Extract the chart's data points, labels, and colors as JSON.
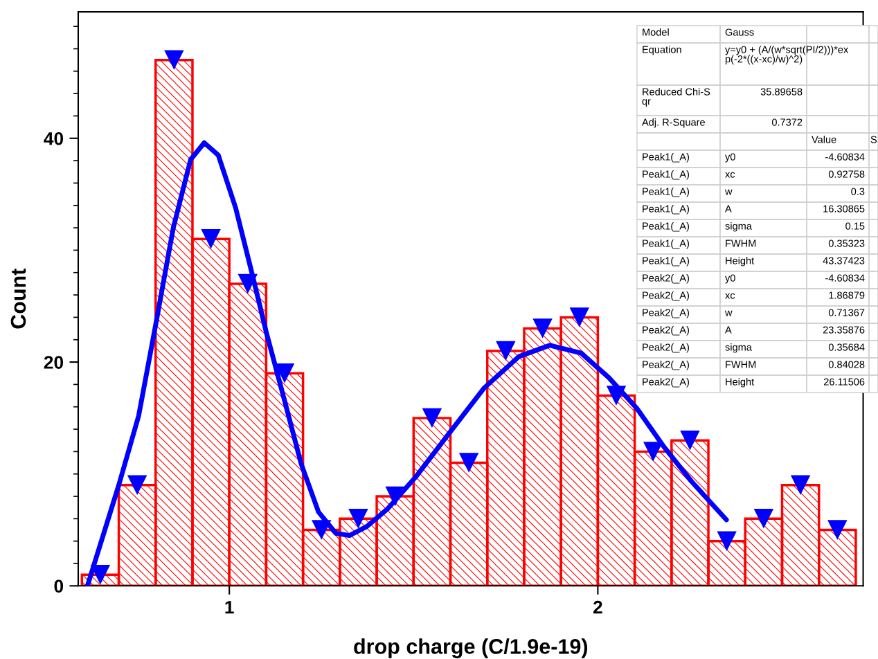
{
  "chart_data": {
    "type": "histogram",
    "xlabel": "drop charge (C/1.9e-19)",
    "ylabel": "Count",
    "xlim": [
      0.59,
      2.72
    ],
    "ylim": [
      0,
      51.3
    ],
    "xticks": [
      1,
      2
    ],
    "yticks": [
      0,
      {
        "value": 2,
        "label": null
      },
      {
        "value": 4,
        "label": null
      },
      {
        "value": 6,
        "label": null
      },
      {
        "value": 8,
        "label": null
      },
      {
        "value": 10,
        "label": null
      },
      {
        "value": 12,
        "label": null
      },
      {
        "value": 14,
        "label": null
      },
      {
        "value": 16,
        "label": null
      },
      {
        "value": 18,
        "label": null
      },
      20,
      {
        "value": 22,
        "label": null
      },
      {
        "value": 24,
        "label": null
      },
      {
        "value": 26,
        "label": null
      },
      {
        "value": 28,
        "label": null
      },
      {
        "value": 30,
        "label": null
      },
      {
        "value": 32,
        "label": null
      },
      {
        "value": 34,
        "label": null
      },
      {
        "value": 36,
        "label": null
      },
      {
        "value": 38,
        "label": null
      },
      40,
      {
        "value": 42,
        "label": null
      },
      {
        "value": 44,
        "label": null
      },
      {
        "value": 46,
        "label": null
      },
      {
        "value": 48,
        "label": null
      },
      {
        "value": 50,
        "label": null
      }
    ],
    "grid": false,
    "legend": false,
    "series": [
      {
        "color": "#ff0000",
        "bins": [
          0.6,
          0.7,
          0.8,
          0.9,
          1.0,
          1.1,
          1.2,
          1.3,
          1.4,
          1.5,
          1.6,
          1.7,
          1.8,
          1.9,
          2.0,
          2.1,
          2.2,
          2.3,
          2.4,
          2.5,
          2.6,
          2.7
        ],
        "values": [
          1,
          9,
          47,
          31,
          27,
          19,
          5,
          6,
          8,
          15,
          11,
          21,
          23,
          24,
          17,
          12,
          13,
          4,
          6,
          9,
          5
        ]
      },
      {
        "type": "line",
        "color": "#0000ff",
        "line_style": "solid",
        "x": [
          0.615,
          0.7,
          0.754,
          0.8,
          0.848,
          0.895,
          0.932,
          0.97,
          1.017,
          1.064,
          1.1,
          1.148,
          1.195,
          1.242,
          1.289,
          1.326,
          1.373,
          1.43,
          1.505,
          1.598,
          1.692,
          1.786,
          1.87,
          1.955,
          2.03,
          2.105,
          2.18,
          2.255,
          2.349
        ],
        "values": [
          0,
          9.0,
          15.2,
          23.3,
          32.0,
          38.1,
          39.6,
          38.5,
          33.8,
          27.6,
          22.7,
          16.8,
          10.9,
          6.6,
          4.7,
          4.5,
          5.3,
          6.9,
          9.7,
          13.7,
          17.7,
          20.5,
          21.5,
          20.8,
          18.6,
          15.9,
          12.4,
          9.3,
          5.9
        ]
      },
      {
        "type": "scatter",
        "color": "#0000ff",
        "marker": "triangle",
        "x": [
          0.65,
          0.75,
          0.85,
          0.95,
          1.05,
          1.15,
          1.25,
          1.35,
          1.45,
          1.55,
          1.65,
          1.75,
          1.85,
          1.95,
          2.05,
          2.15,
          2.25,
          2.35,
          2.45,
          2.55,
          2.65
        ],
        "values": [
          1,
          9,
          47,
          31,
          27,
          19,
          5,
          6,
          8,
          15,
          11,
          21,
          23,
          24,
          17,
          12,
          13,
          4,
          6,
          9,
          5
        ]
      }
    ],
    "annotations": [
      "Model\tGauss\t\t",
      "Equation\ty=y0 + (A/(w*sqrt(PI/2)))*ex\np(-2*((x-xc)/w)^2)\t\t",
      "Reduced Chi-S\nqr\t35.89658\t\t",
      "Adj. R-Square\t0.7372\t\t",
      "\t\tValue\tS",
      "Peak1(_A)\ty0\t-4.60834\t",
      "Peak1(_A)\txc\t0.92758\t",
      "Peak1(_A)\tw\t0.3\t",
      "Peak1(_A)\tA\t16.30865\t",
      "Peak1(_A)\tsigma\t0.15\t",
      "Peak1(_A)\tFWHM\t0.35323\t",
      "Peak1(_A)\tHeight\t43.37423\t",
      "Peak2(_A)\ty0\t-4.60834\t",
      "Peak2(_A)\txc\t1.86879\t",
      "Peak2(_A)\tw\t0.71367\t",
      "Peak2(_A)\tA\t23.35876\t",
      "Peak2(_A)\tsigma\t0.35684\t",
      "Peak2(_A)\tFWHM\t0.84028\t",
      "Peak2(_A)\tHeight\t26.11506\t"
    ]
  }
}
